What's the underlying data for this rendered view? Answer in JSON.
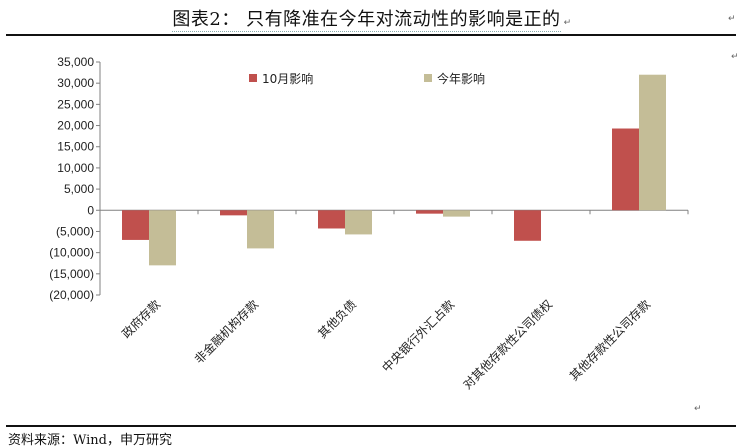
{
  "title": {
    "text": "图表2：  只有降准在今年对流动性的影响是正的",
    "marker": "↵"
  },
  "source_text": "资料来源：Wind，申万研究",
  "colors": {
    "series1": "#c0504d",
    "series2": "#c4bd97"
  },
  "chart_data": {
    "type": "bar",
    "categories": [
      "政府存款",
      "非金融机构存款",
      "其他负债",
      "中央银行外汇占款",
      "对其他存款性公司债权",
      "其他存款性公司存款"
    ],
    "series": [
      {
        "name": "10月影响",
        "values": [
          -7000,
          -1200,
          -4300,
          -800,
          -7200,
          19300
        ]
      },
      {
        "name": "今年影响",
        "values": [
          -13000,
          -9000,
          -5700,
          -1500,
          0,
          32000
        ]
      }
    ],
    "ylim": [
      -20000,
      35000
    ],
    "yticks": [
      35000,
      30000,
      25000,
      20000,
      15000,
      10000,
      5000,
      0,
      -5000,
      -10000,
      -15000,
      -20000
    ],
    "ytick_labels": [
      "35,000",
      "30,000",
      "25,000",
      "20,000",
      "15,000",
      "10,000",
      "5,000",
      "0",
      "(5,000)",
      "(10,000)",
      "(15,000)",
      "(20,000)"
    ],
    "legend": "top-center",
    "grid": false
  }
}
